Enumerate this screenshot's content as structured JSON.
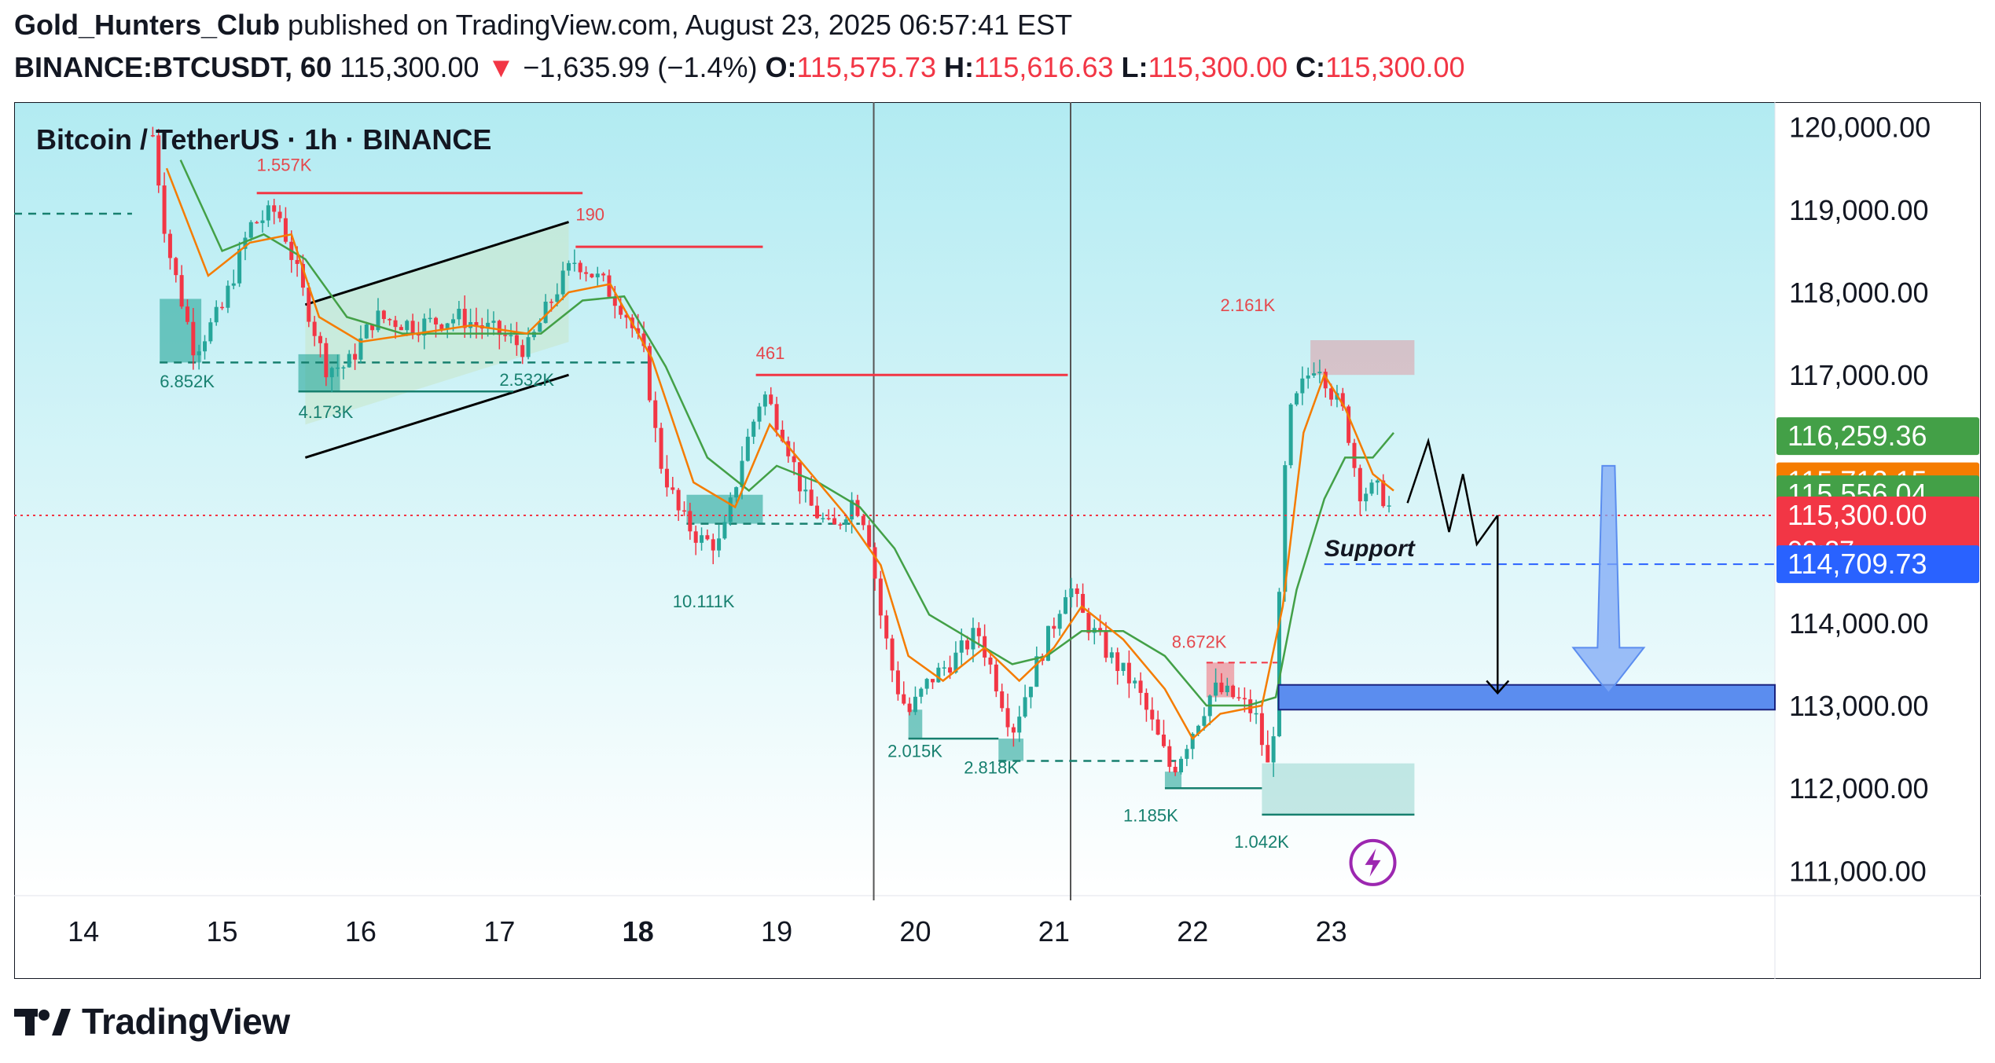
{
  "header": {
    "author": "Gold_Hunters_Club",
    "published_text": "published on TradingView.com, August 23, 2025 06:57:41 EST",
    "symbol": "BINANCE:BTCUSDT, 60",
    "last_price": "115,300.00",
    "change_arrow": "▼",
    "change": "−1,635.99 (−1.4%)",
    "o_label": "O:",
    "o_value": "115,575.73",
    "h_label": "H:",
    "h_value": "115,616.63",
    "l_label": "L:",
    "l_value": "115,300.00",
    "c_label": "C:",
    "c_value": "115,300.00"
  },
  "footer": {
    "brand": "TradingView",
    "logo_icon": "tradingview-logo-icon"
  },
  "colors": {
    "up": "#26a69a",
    "down": "#f23645",
    "ema_fast": "#f57c00",
    "ema_slow": "#43a047",
    "bg_top": "#b2ebf2",
    "bg_bottom": "#ffffff",
    "target_zone": "#5b8def",
    "arrow": "#7fa8f5"
  },
  "chart_data": {
    "type": "candlestick",
    "title": "Bitcoin / TetherUS · 1h · BINANCE",
    "y_range": [
      110700,
      120300
    ],
    "y_ticks": [
      "120,000.00",
      "119,000.00",
      "118,000.00",
      "117,000.00",
      "115,300.00",
      "114,000.00",
      "113,000.00",
      "112,000.00",
      "111,000.00"
    ],
    "x_range": [
      13.5,
      26.2
    ],
    "x_ticks": [
      {
        "x": 14,
        "label": "14",
        "bold": false
      },
      {
        "x": 15,
        "label": "15",
        "bold": false
      },
      {
        "x": 16,
        "label": "16",
        "bold": false
      },
      {
        "x": 17,
        "label": "17",
        "bold": false
      },
      {
        "x": 18,
        "label": "18",
        "bold": true
      },
      {
        "x": 19,
        "label": "19",
        "bold": false
      },
      {
        "x": 20,
        "label": "20",
        "bold": false
      },
      {
        "x": 21,
        "label": "21",
        "bold": false
      },
      {
        "x": 22,
        "label": "22",
        "bold": false
      },
      {
        "x": 23,
        "label": "23",
        "bold": false
      }
    ],
    "price_path": [
      [
        14.5,
        119900
      ],
      [
        14.6,
        118600
      ],
      [
        14.8,
        117300
      ],
      [
        15.0,
        117800
      ],
      [
        15.2,
        118800
      ],
      [
        15.4,
        119000
      ],
      [
        15.6,
        117900
      ],
      [
        15.75,
        117100
      ],
      [
        15.9,
        117100
      ],
      [
        16.1,
        117700
      ],
      [
        16.4,
        117600
      ],
      [
        16.7,
        117700
      ],
      [
        17.0,
        117500
      ],
      [
        17.2,
        117300
      ],
      [
        17.4,
        118000
      ],
      [
        17.55,
        118400
      ],
      [
        17.75,
        118100
      ],
      [
        17.9,
        117800
      ],
      [
        18.05,
        117200
      ],
      [
        18.15,
        116000
      ],
      [
        18.3,
        115300
      ],
      [
        18.45,
        115000
      ],
      [
        18.6,
        114950
      ],
      [
        18.75,
        116000
      ],
      [
        18.9,
        116800
      ],
      [
        19.05,
        116300
      ],
      [
        19.2,
        115500
      ],
      [
        19.4,
        115100
      ],
      [
        19.55,
        115500
      ],
      [
        19.65,
        115200
      ],
      [
        19.75,
        114100
      ],
      [
        19.85,
        113300
      ],
      [
        19.95,
        112900
      ],
      [
        20.1,
        113300
      ],
      [
        20.3,
        113600
      ],
      [
        20.45,
        113900
      ],
      [
        20.6,
        113200
      ],
      [
        20.7,
        112700
      ],
      [
        20.85,
        113400
      ],
      [
        21.0,
        114000
      ],
      [
        21.1,
        114500
      ],
      [
        21.2,
        114100
      ],
      [
        21.4,
        113600
      ],
      [
        21.6,
        113200
      ],
      [
        21.75,
        112600
      ],
      [
        21.85,
        112200
      ],
      [
        22.0,
        112700
      ],
      [
        22.15,
        113200
      ],
      [
        22.3,
        113100
      ],
      [
        22.45,
        112900
      ],
      [
        22.55,
        112200
      ],
      [
        22.6,
        113000
      ],
      [
        22.65,
        115500
      ],
      [
        22.7,
        116500
      ],
      [
        22.8,
        116900
      ],
      [
        22.9,
        117200
      ],
      [
        23.0,
        116800
      ],
      [
        23.1,
        116500
      ],
      [
        23.2,
        115600
      ],
      [
        23.35,
        115600
      ],
      [
        23.45,
        115300
      ]
    ],
    "ema_fast_path": [
      [
        14.6,
        119500
      ],
      [
        14.9,
        118200
      ],
      [
        15.2,
        118600
      ],
      [
        15.5,
        118700
      ],
      [
        15.7,
        117700
      ],
      [
        16.0,
        117400
      ],
      [
        16.4,
        117500
      ],
      [
        16.8,
        117600
      ],
      [
        17.2,
        117500
      ],
      [
        17.5,
        118000
      ],
      [
        17.8,
        118100
      ],
      [
        18.1,
        117200
      ],
      [
        18.4,
        115700
      ],
      [
        18.7,
        115400
      ],
      [
        18.95,
        116400
      ],
      [
        19.2,
        115900
      ],
      [
        19.5,
        115300
      ],
      [
        19.75,
        114700
      ],
      [
        19.95,
        113600
      ],
      [
        20.2,
        113300
      ],
      [
        20.5,
        113700
      ],
      [
        20.75,
        113300
      ],
      [
        21.0,
        113700
      ],
      [
        21.2,
        114200
      ],
      [
        21.5,
        113800
      ],
      [
        21.8,
        113200
      ],
      [
        22.0,
        112600
      ],
      [
        22.2,
        112900
      ],
      [
        22.5,
        113000
      ],
      [
        22.65,
        114200
      ],
      [
        22.8,
        116300
      ],
      [
        22.95,
        117000
      ],
      [
        23.1,
        116600
      ],
      [
        23.3,
        115800
      ],
      [
        23.45,
        115600
      ]
    ],
    "ema_slow_path": [
      [
        14.7,
        119600
      ],
      [
        15.0,
        118500
      ],
      [
        15.3,
        118700
      ],
      [
        15.6,
        118400
      ],
      [
        15.9,
        117700
      ],
      [
        16.3,
        117500
      ],
      [
        16.8,
        117500
      ],
      [
        17.3,
        117500
      ],
      [
        17.6,
        117900
      ],
      [
        17.9,
        117950
      ],
      [
        18.2,
        117100
      ],
      [
        18.5,
        116000
      ],
      [
        18.8,
        115600
      ],
      [
        19.0,
        115900
      ],
      [
        19.3,
        115700
      ],
      [
        19.6,
        115400
      ],
      [
        19.85,
        114900
      ],
      [
        20.1,
        114100
      ],
      [
        20.4,
        113800
      ],
      [
        20.7,
        113500
      ],
      [
        20.95,
        113600
      ],
      [
        21.2,
        113900
      ],
      [
        21.5,
        113900
      ],
      [
        21.8,
        113600
      ],
      [
        22.1,
        113000
      ],
      [
        22.4,
        113000
      ],
      [
        22.6,
        113100
      ],
      [
        22.75,
        114400
      ],
      [
        22.95,
        115500
      ],
      [
        23.1,
        116000
      ],
      [
        23.3,
        116000
      ],
      [
        23.45,
        116300
      ]
    ],
    "annotations": [
      {
        "x": 14.55,
        "y": 116850,
        "text": "6.852K",
        "color": "up"
      },
      {
        "x": 15.55,
        "y": 116480,
        "text": "4.173K",
        "color": "up"
      },
      {
        "x": 17.0,
        "y": 116870,
        "text": "2.532K",
        "color": "up"
      },
      {
        "x": 15.25,
        "y": 119470,
        "text": "1.557K",
        "color": "down"
      },
      {
        "x": 17.55,
        "y": 118870,
        "text": "190",
        "color": "down"
      },
      {
        "x": 18.85,
        "y": 117190,
        "text": "461",
        "color": "down"
      },
      {
        "x": 18.25,
        "y": 114190,
        "text": "10.111K",
        "color": "up"
      },
      {
        "x": 19.8,
        "y": 112380,
        "text": "2.015K",
        "color": "up"
      },
      {
        "x": 20.35,
        "y": 112180,
        "text": "2.818K",
        "color": "up"
      },
      {
        "x": 22.2,
        "y": 117770,
        "text": "2.161K",
        "color": "down"
      },
      {
        "x": 21.85,
        "y": 113700,
        "text": "8.672K",
        "color": "down"
      },
      {
        "x": 21.5,
        "y": 111600,
        "text": "1.185K",
        "color": "up"
      },
      {
        "x": 22.3,
        "y": 111280,
        "text": "1.042K",
        "color": "up"
      }
    ],
    "support_label": "Support",
    "price_labels": [
      {
        "value": 116259.36,
        "text": "116,259.36",
        "color": "#43a047"
      },
      {
        "value": 115713.15,
        "text": "115,713.15",
        "color": "#f57c00"
      },
      {
        "value": 115556.04,
        "text": "115,556.04",
        "color": "#43a047"
      },
      {
        "value": 115300.0,
        "text": "115,300.00",
        "sub": "02:27",
        "color": "#f23645"
      },
      {
        "value": 114709.73,
        "text": "114,709.73",
        "color": "#2962ff"
      }
    ],
    "current_price": 115300,
    "support_price": 114709.73,
    "target_zone": [
      112950,
      113250
    ],
    "vertical_lines": [
      19.7,
      21.12
    ],
    "grid": false,
    "legend": "none",
    "bolt_icon": "lightning-bolt-icon"
  }
}
